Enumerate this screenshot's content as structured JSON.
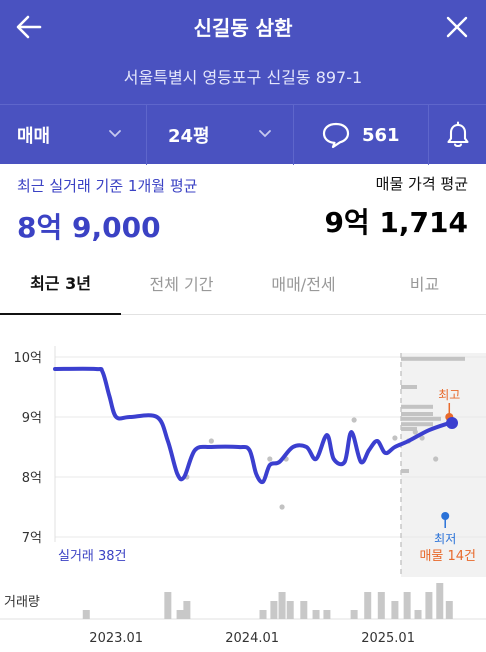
{
  "header": {
    "title": "신길동 삼환",
    "address": "서울특별시 영등포구 신길동 897-1",
    "back_icon": "arrow-left-icon",
    "close_icon": "close-icon"
  },
  "toolbar": {
    "trade_type": "매매",
    "size": "24평",
    "comment_count": "561"
  },
  "prices": {
    "recent_label": "최근 실거래 기준 1개월 평균",
    "recent_value": "8억 9,000",
    "listing_label": "매물 가격 평균",
    "listing_value": "9억 1,714"
  },
  "tabs": [
    {
      "label": "최근 3년",
      "active": true
    },
    {
      "label": "전체 기간",
      "active": false
    },
    {
      "label": "매매/전세",
      "active": false
    },
    {
      "label": "비교",
      "active": false
    }
  ],
  "colors": {
    "brand": "#4a52c0",
    "line": "#3b3fcf",
    "high": "#e86a2c",
    "low": "#2a72d8"
  },
  "chart_data": {
    "type": "line",
    "y_unit": "억",
    "y_ticks": [
      "10억",
      "9억",
      "8억",
      "7억"
    ],
    "y_tick_values": [
      10,
      9,
      8,
      7
    ],
    "ylim": [
      7,
      10
    ],
    "x_ticks": [
      "2023.01",
      "2024.01",
      "2025.01"
    ],
    "x_tick_values": [
      2023.0,
      2024.0,
      2025.0
    ],
    "xlim": [
      2022.55,
      2025.72
    ],
    "trade_count_label": "실거래 38건",
    "listing_count_label": "매물 14건",
    "volume_label": "거래량",
    "high_label": "최고",
    "low_label": "최저",
    "high_point": {
      "x": 2025.45,
      "y": 9.0
    },
    "low_point": {
      "x": 2025.42,
      "y": 7.35
    },
    "series": [
      {
        "values": [
          [
            2022.55,
            9.8
          ],
          [
            2022.85,
            9.8
          ],
          [
            2022.9,
            9.75
          ],
          [
            2022.95,
            9.35
          ],
          [
            2023.0,
            9.0
          ],
          [
            2023.1,
            9.0
          ],
          [
            2023.3,
            9.0
          ],
          [
            2023.38,
            8.6
          ],
          [
            2023.45,
            8.05
          ],
          [
            2023.5,
            8.0
          ],
          [
            2023.58,
            8.45
          ],
          [
            2023.7,
            8.5
          ],
          [
            2023.9,
            8.5
          ],
          [
            2023.98,
            8.45
          ],
          [
            2024.03,
            8.05
          ],
          [
            2024.08,
            7.92
          ],
          [
            2024.13,
            8.2
          ],
          [
            2024.2,
            8.25
          ],
          [
            2024.3,
            8.5
          ],
          [
            2024.4,
            8.5
          ],
          [
            2024.47,
            8.3
          ],
          [
            2024.55,
            8.7
          ],
          [
            2024.6,
            8.3
          ],
          [
            2024.68,
            8.25
          ],
          [
            2024.73,
            8.75
          ],
          [
            2024.8,
            8.25
          ],
          [
            2024.86,
            8.45
          ],
          [
            2024.92,
            8.6
          ],
          [
            2024.98,
            8.4
          ],
          [
            2025.05,
            8.5
          ],
          [
            2025.15,
            8.6
          ],
          [
            2025.3,
            8.78
          ],
          [
            2025.45,
            8.9
          ]
        ]
      }
    ],
    "current_point": {
      "x": 2025.47,
      "y": 8.9
    },
    "scatter_trades": [
      [
        2023.52,
        8.0
      ],
      [
        2023.7,
        8.6
      ],
      [
        2024.13,
        8.3
      ],
      [
        2024.22,
        7.5
      ],
      [
        2024.25,
        8.3
      ],
      [
        2024.75,
        8.95
      ],
      [
        2025.05,
        8.65
      ],
      [
        2025.15,
        8.6
      ],
      [
        2025.2,
        8.75
      ],
      [
        2025.25,
        8.65
      ],
      [
        2025.35,
        8.3
      ]
    ],
    "listing_histogram": [
      {
        "price": 9.97,
        "count": 8
      },
      {
        "price": 9.5,
        "count": 2
      },
      {
        "price": 9.17,
        "count": 4
      },
      {
        "price": 9.05,
        "count": 4
      },
      {
        "price": 8.97,
        "count": 5
      },
      {
        "price": 8.88,
        "count": 4
      },
      {
        "price": 8.8,
        "count": 2
      },
      {
        "price": 8.1,
        "count": 1
      }
    ],
    "volume": [
      [
        2022.78,
        1
      ],
      [
        2023.38,
        3
      ],
      [
        2023.47,
        1
      ],
      [
        2023.52,
        2
      ],
      [
        2024.08,
        1
      ],
      [
        2024.16,
        2
      ],
      [
        2024.22,
        3
      ],
      [
        2024.28,
        2
      ],
      [
        2024.38,
        2
      ],
      [
        2024.47,
        1
      ],
      [
        2024.55,
        1
      ],
      [
        2024.75,
        1
      ],
      [
        2024.85,
        3
      ],
      [
        2024.95,
        3
      ],
      [
        2025.05,
        2
      ],
      [
        2025.14,
        3
      ],
      [
        2025.22,
        1
      ],
      [
        2025.3,
        3
      ],
      [
        2025.38,
        4
      ],
      [
        2025.45,
        2
      ]
    ]
  }
}
